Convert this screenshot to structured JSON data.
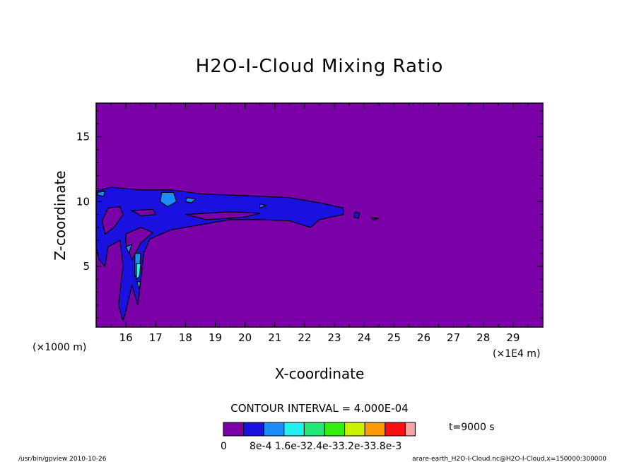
{
  "chart_data": {
    "type": "heatmap",
    "title": "H2O-I-Cloud Mixing Ratio",
    "xlabel": "X-coordinate",
    "ylabel": "Z-coordinate",
    "x_unit_left": "(×1000 m)",
    "x_unit_right": "(×1E4 m)",
    "xlim": [
      15.0,
      30.0
    ],
    "ylim": [
      0.3,
      17.6
    ],
    "x_ticks": [
      16,
      17,
      18,
      19,
      20,
      21,
      22,
      23,
      24,
      25,
      26,
      27,
      28,
      29
    ],
    "y_ticks": [
      5,
      10,
      15
    ],
    "background_level_color": "#7b00a8",
    "contour_interval_text": "CONTOUR INTERVAL = 4.000E-04",
    "time_text": "t=9000 s",
    "legend": {
      "colors": [
        "#7b00a8",
        "#1a10e0",
        "#1c8cff",
        "#22f0f0",
        "#22e87a",
        "#33ee10",
        "#ccf000",
        "#ff9a00",
        "#ff1010",
        "#f4a4a4"
      ],
      "labels": [
        "0",
        "8e-4",
        "1.6e-3",
        "2.4e-3",
        "3.2e-3",
        "3.8e-3"
      ],
      "label_text": [
        "0",
        "8e-4 1.6e-32.4e-33.2e-33.8e-3"
      ]
    },
    "regions": [
      {
        "level": 1,
        "desc": "main cloud band",
        "points": [
          [
            15.0,
            10.8
          ],
          [
            15.5,
            11.1
          ],
          [
            16.5,
            10.9
          ],
          [
            17.5,
            10.9
          ],
          [
            18.5,
            10.6
          ],
          [
            19.5,
            10.5
          ],
          [
            20.5,
            10.4
          ],
          [
            21.5,
            10.3
          ],
          [
            22.5,
            9.9
          ],
          [
            23.3,
            9.5
          ],
          [
            23.3,
            9.0
          ],
          [
            22.5,
            8.6
          ],
          [
            22.2,
            8.0
          ],
          [
            21.5,
            8.5
          ],
          [
            20.5,
            8.6
          ],
          [
            19.5,
            8.6
          ],
          [
            18.5,
            8.2
          ],
          [
            17.5,
            7.8
          ],
          [
            16.8,
            7.1
          ],
          [
            16.6,
            6.0
          ],
          [
            16.5,
            4.0
          ],
          [
            16.4,
            2.0
          ],
          [
            16.2,
            3.5
          ],
          [
            16.0,
            1.5
          ],
          [
            15.9,
            0.8
          ],
          [
            15.75,
            2.0
          ],
          [
            15.9,
            5.0
          ],
          [
            15.8,
            7.0
          ],
          [
            15.4,
            6.5
          ],
          [
            15.3,
            5.0
          ],
          [
            15.1,
            5.5
          ],
          [
            15.0,
            6.5
          ]
        ]
      },
      {
        "level": 1,
        "desc": "blob 1",
        "points": [
          [
            23.7,
            9.2
          ],
          [
            23.85,
            9.1
          ],
          [
            23.8,
            8.7
          ],
          [
            23.65,
            8.8
          ]
        ]
      },
      {
        "level": 1,
        "desc": "blob 2",
        "points": [
          [
            24.25,
            8.75
          ],
          [
            24.5,
            8.7
          ],
          [
            24.3,
            8.55
          ]
        ]
      },
      {
        "level": 2,
        "desc": "core 1",
        "points": [
          [
            17.2,
            10.7
          ],
          [
            17.6,
            10.7
          ],
          [
            17.7,
            10.0
          ],
          [
            17.4,
            9.6
          ],
          [
            17.15,
            10.0
          ]
        ]
      },
      {
        "level": 2,
        "desc": "core 2",
        "points": [
          [
            18.05,
            10.3
          ],
          [
            18.35,
            10.2
          ],
          [
            18.2,
            9.9
          ],
          [
            18.0,
            10.0
          ]
        ]
      },
      {
        "level": 2,
        "desc": "core 3",
        "points": [
          [
            20.5,
            9.8
          ],
          [
            20.7,
            9.7
          ],
          [
            20.5,
            9.5
          ]
        ]
      },
      {
        "level": 2,
        "desc": "core 4",
        "points": [
          [
            15.05,
            10.7
          ],
          [
            15.3,
            10.8
          ],
          [
            15.25,
            10.4
          ],
          [
            15.05,
            10.5
          ]
        ]
      },
      {
        "level": 2,
        "desc": "lower core",
        "points": [
          [
            16.3,
            6.0
          ],
          [
            16.5,
            6.0
          ],
          [
            16.45,
            4.5
          ],
          [
            16.3,
            4.2
          ]
        ]
      },
      {
        "level": 2,
        "desc": "lower core 2",
        "points": [
          [
            16.0,
            6.5
          ],
          [
            16.2,
            6.7
          ],
          [
            16.1,
            6.0
          ]
        ]
      },
      {
        "level": 3,
        "desc": "cyan core",
        "points": [
          [
            16.35,
            5.2
          ],
          [
            16.5,
            5.2
          ],
          [
            16.45,
            4.2
          ],
          [
            16.35,
            4.0
          ]
        ]
      },
      {
        "level": 3,
        "desc": "cyan core 2",
        "points": [
          [
            16.38,
            3.8
          ],
          [
            16.48,
            3.8
          ],
          [
            16.45,
            3.2
          ]
        ]
      }
    ],
    "holes": [
      {
        "desc": "gap left",
        "points": [
          [
            15.4,
            9.5
          ],
          [
            15.8,
            9.6
          ],
          [
            15.9,
            9.0
          ],
          [
            15.6,
            8.0
          ],
          [
            15.3,
            7.5
          ],
          [
            15.2,
            8.5
          ]
        ]
      },
      {
        "desc": "gap mid",
        "points": [
          [
            16.2,
            9.3
          ],
          [
            16.9,
            9.4
          ],
          [
            17.0,
            9.0
          ],
          [
            16.5,
            8.9
          ]
        ]
      },
      {
        "desc": "gap right",
        "points": [
          [
            18.0,
            9.0
          ],
          [
            19.5,
            9.2
          ],
          [
            20.5,
            9.1
          ],
          [
            20.0,
            8.8
          ],
          [
            18.7,
            8.6
          ]
        ]
      },
      {
        "desc": "gap vertical",
        "points": [
          [
            16.0,
            7.5
          ],
          [
            16.5,
            8.0
          ],
          [
            16.9,
            7.6
          ],
          [
            16.5,
            6.8
          ],
          [
            16.2,
            5.5
          ],
          [
            16.0,
            6.8
          ]
        ]
      }
    ]
  },
  "footer": {
    "left": "/usr/bin/gpview   2010-10-26",
    "right": "arare-earth_H2O-I-Cloud.nc@H2O-I-Cloud,x=150000:300000"
  }
}
